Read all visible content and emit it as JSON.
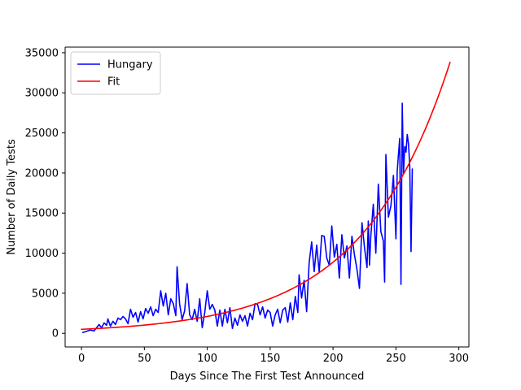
{
  "chart_data": {
    "type": "line",
    "xlabel": "Days Since The First Test Announced",
    "ylabel": "Number of Daily Tests",
    "xlim": [
      -13,
      308
    ],
    "ylim": [
      -1700,
      35700
    ],
    "xticks": [
      0,
      50,
      100,
      150,
      200,
      250,
      300
    ],
    "yticks": [
      0,
      5000,
      10000,
      15000,
      20000,
      25000,
      30000,
      35000
    ],
    "grid": false,
    "legend_position": "top-left",
    "series": [
      {
        "name": "Hungary",
        "color": "#0000ff",
        "kind": "observed",
        "x": [
          1,
          4,
          7,
          10,
          12,
          14,
          16,
          18,
          20,
          21,
          23,
          25,
          27,
          29,
          31,
          33,
          35,
          37,
          39,
          41,
          43,
          45,
          47,
          49,
          51,
          53,
          55,
          57,
          59,
          61,
          63,
          65,
          67,
          69,
          71,
          73,
          75,
          76,
          78,
          80,
          82,
          84,
          86,
          88,
          90,
          92,
          94,
          96,
          98,
          100,
          102,
          104,
          106,
          108,
          110,
          112,
          114,
          116,
          118,
          120,
          122,
          124,
          126,
          128,
          130,
          132,
          134,
          136,
          138,
          140,
          142,
          144,
          146,
          148,
          150,
          152,
          154,
          156,
          158,
          160,
          162,
          164,
          166,
          168,
          170,
          172,
          173,
          175,
          177,
          179,
          181,
          183,
          185,
          187,
          189,
          191,
          193,
          195,
          197,
          199,
          201,
          203,
          205,
          207,
          209,
          211,
          213,
          215,
          217,
          219,
          221,
          223,
          225,
          227,
          228,
          229,
          230,
          232,
          234,
          236,
          238,
          240,
          241,
          242,
          244,
          246,
          248,
          250,
          251,
          252,
          253,
          254,
          255,
          256,
          257,
          258,
          259,
          260,
          261,
          262,
          263
        ],
        "y": [
          100,
          250,
          400,
          300,
          700,
          1100,
          700,
          1300,
          1000,
          1800,
          900,
          1500,
          1100,
          1900,
          1700,
          2100,
          1800,
          1200,
          3000,
          2000,
          2600,
          1400,
          2700,
          1800,
          3100,
          2500,
          3300,
          2200,
          3000,
          2600,
          5300,
          3400,
          5000,
          2300,
          4300,
          3700,
          2200,
          8300,
          3700,
          1700,
          2800,
          6200,
          2300,
          1700,
          3000,
          1500,
          4300,
          700,
          2600,
          5300,
          3000,
          3600,
          2900,
          900,
          2900,
          900,
          3000,
          1300,
          3200,
          600,
          1900,
          1000,
          2300,
          1500,
          2200,
          900,
          2500,
          1700,
          3700,
          3600,
          2300,
          3300,
          1900,
          2900,
          2600,
          900,
          2300,
          3000,
          1300,
          2900,
          3200,
          1400,
          3800,
          1700,
          4600,
          2600,
          7300,
          4400,
          6600,
          2700,
          8800,
          11400,
          7700,
          11000,
          7600,
          12200,
          12100,
          9400,
          8500,
          13400,
          9500,
          11100,
          6900,
          12300,
          9400,
          10900,
          6900,
          12100,
          9800,
          8000,
          5600,
          13800,
          10700,
          8200,
          14000,
          8500,
          12100,
          16100,
          10000,
          18600,
          12700,
          11500,
          6400,
          22300,
          14500,
          15900,
          19700,
          11800,
          20200,
          22300,
          24300,
          6100,
          28700,
          20000,
          23300,
          22600,
          24800,
          23600,
          20800,
          10200,
          20500
        ]
      },
      {
        "name": "Fit",
        "color": "#ff0000",
        "kind": "exponential",
        "x_start": 0,
        "x_end": 293,
        "y_start": 500,
        "y_end": 33800
      }
    ]
  }
}
